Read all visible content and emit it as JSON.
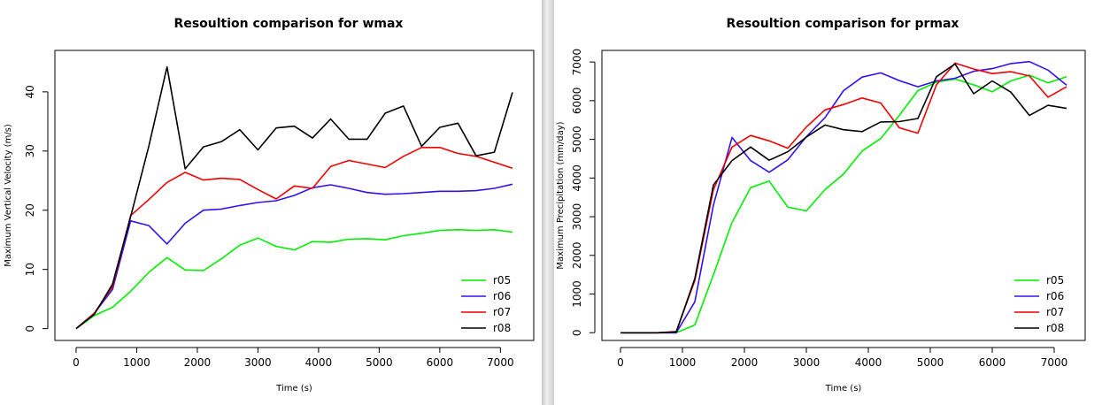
{
  "chart_data": [
    {
      "type": "line",
      "title": "Resoultion comparison for wmax",
      "xlabel": "Time (s)",
      "ylabel": "Maximum Vertical Velocity (m/s)",
      "xlim": [
        -350,
        7550
      ],
      "ylim": [
        -2,
        47
      ],
      "xticks": [
        0,
        1000,
        2000,
        3000,
        4000,
        5000,
        6000,
        7000
      ],
      "yticks": [
        0,
        10,
        20,
        30,
        40
      ],
      "legend_position": "bottom-right",
      "x": [
        0,
        300,
        600,
        900,
        1200,
        1500,
        1800,
        2100,
        2400,
        2700,
        3000,
        3300,
        3600,
        3900,
        4200,
        4500,
        4800,
        5100,
        5400,
        5700,
        6000,
        6300,
        6600,
        6900,
        7200
      ],
      "series": [
        {
          "name": "r05",
          "color": "#00ee00",
          "values": [
            0,
            2.2,
            3.6,
            6.3,
            9.5,
            12,
            9.9,
            9.8,
            11.8,
            14.1,
            15.3,
            13.9,
            13.3,
            14.7,
            14.6,
            15.1,
            15.2,
            15.0,
            15.7,
            16.1,
            16.6,
            16.7,
            16.6,
            16.7,
            16.3
          ]
        },
        {
          "name": "r06",
          "color": "#3311ee",
          "values": [
            0,
            2.6,
            6.6,
            18.2,
            17.4,
            14.3,
            17.8,
            20.0,
            20.2,
            20.8,
            21.3,
            21.6,
            22.5,
            23.8,
            24.3,
            23.7,
            23.0,
            22.7,
            22.8,
            23.0,
            23.2,
            23.2,
            23.3,
            23.7,
            24.4
          ]
        },
        {
          "name": "r07",
          "color": "#ee0000",
          "values": [
            0,
            2.6,
            7.1,
            19.1,
            21.8,
            24.7,
            26.4,
            25.1,
            25.4,
            25.2,
            23.5,
            21.9,
            24.1,
            23.7,
            27.4,
            28.4,
            27.8,
            27.2,
            29.1,
            30.6,
            30.6,
            29.6,
            29.1,
            28.1,
            27.1
          ]
        },
        {
          "name": "r08",
          "color": "#000000",
          "values": [
            0,
            2.4,
            7.5,
            18.9,
            30.8,
            44.2,
            27.0,
            30.7,
            31.6,
            33.6,
            30.2,
            33.9,
            34.2,
            32.2,
            35.4,
            32.0,
            32.0,
            36.4,
            37.6,
            30.8,
            34.0,
            34.7,
            29.2,
            29.8,
            39.9
          ]
        }
      ]
    },
    {
      "type": "line",
      "title": "Resoultion comparison for prmax",
      "xlabel": "Time (s)",
      "ylabel": "Maximum Precipitation (mm/day)",
      "xlim": [
        -300,
        7500
      ],
      "ylim": [
        -200,
        7300
      ],
      "xticks": [
        0,
        1000,
        2000,
        3000,
        4000,
        5000,
        6000,
        7000
      ],
      "yticks": [
        0,
        1000,
        2000,
        3000,
        4000,
        5000,
        6000,
        7000
      ],
      "legend_position": "bottom-right",
      "x": [
        0,
        300,
        600,
        900,
        1200,
        1500,
        1800,
        2100,
        2400,
        2700,
        3000,
        3300,
        3600,
        3900,
        4200,
        4500,
        4800,
        5100,
        5400,
        5700,
        6000,
        6300,
        6600,
        6900,
        7200
      ],
      "series": [
        {
          "name": "r05",
          "color": "#00ee00",
          "values": [
            0,
            0,
            0,
            0,
            200,
            1500,
            2850,
            3750,
            3920,
            3250,
            3150,
            3700,
            4100,
            4700,
            5020,
            5620,
            6260,
            6480,
            6560,
            6410,
            6230,
            6510,
            6660,
            6460,
            6620
          ]
        },
        {
          "name": "r06",
          "color": "#3311ee",
          "values": [
            0,
            0,
            0,
            0,
            800,
            3300,
            5050,
            4450,
            4150,
            4470,
            5070,
            5560,
            6260,
            6610,
            6720,
            6520,
            6360,
            6510,
            6580,
            6760,
            6830,
            6960,
            7010,
            6790,
            6400
          ]
        },
        {
          "name": "r07",
          "color": "#ee0000",
          "values": [
            0,
            0,
            0,
            30,
            1350,
            3700,
            4800,
            5100,
            4960,
            4770,
            5320,
            5760,
            5900,
            6070,
            5940,
            5300,
            5160,
            6410,
            6970,
            6820,
            6700,
            6750,
            6640,
            6090,
            6360
          ]
        },
        {
          "name": "r08",
          "color": "#000000",
          "values": [
            0,
            0,
            0,
            20,
            1400,
            3820,
            4450,
            4800,
            4460,
            4680,
            5060,
            5370,
            5250,
            5200,
            5450,
            5460,
            5540,
            6620,
            6950,
            6180,
            6510,
            6220,
            5620,
            5880,
            5800
          ]
        }
      ]
    }
  ]
}
